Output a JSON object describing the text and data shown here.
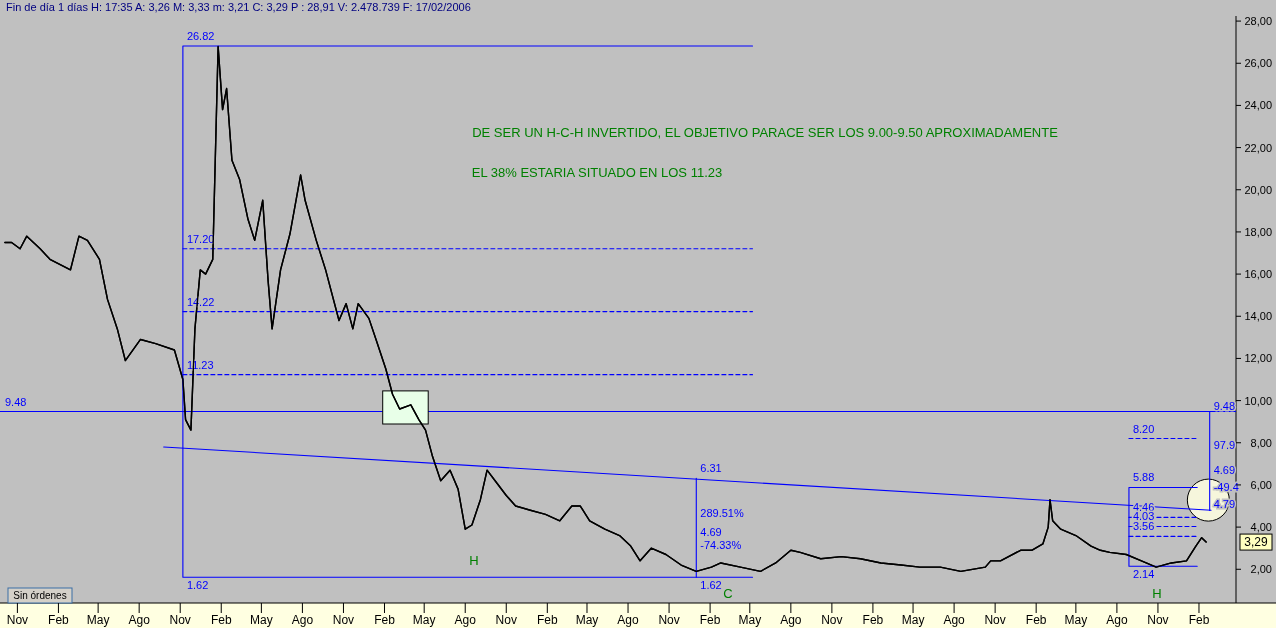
{
  "chart_data": {
    "type": "line",
    "title": "Fin de día 1 días H: 17:35 A: 3,26 M: 3,33 m: 3,21 C: 3,29 P : 28,91 V: 2.478.739 F: 17/02/2006",
    "xlim": [
      "1998-09-23",
      "2006-04-25"
    ],
    "ylim": [
      0.4,
      29.0
    ],
    "xticks": [
      {
        "value": "1998-11-01",
        "label": "Nov"
      },
      {
        "value": "1999-02-01",
        "label": "Feb"
      },
      {
        "value": "1999-05-01",
        "label": "May"
      },
      {
        "value": "1999-08-01",
        "label": "Ago"
      },
      {
        "value": "1999-11-01",
        "label": "Nov"
      },
      {
        "value": "2000-02-01",
        "label": "Feb"
      },
      {
        "value": "2000-05-01",
        "label": "May"
      },
      {
        "value": "2000-08-01",
        "label": "Ago"
      },
      {
        "value": "2000-11-01",
        "label": "Nov"
      },
      {
        "value": "2001-02-01",
        "label": "Feb"
      },
      {
        "value": "2001-05-01",
        "label": "May"
      },
      {
        "value": "2001-08-01",
        "label": "Ago"
      },
      {
        "value": "2001-11-01",
        "label": "Nov"
      },
      {
        "value": "2002-02-01",
        "label": "Feb"
      },
      {
        "value": "2002-05-01",
        "label": "May"
      },
      {
        "value": "2002-08-01",
        "label": "Ago"
      },
      {
        "value": "2002-11-01",
        "label": "Nov"
      },
      {
        "value": "2003-02-01",
        "label": "Feb"
      },
      {
        "value": "2003-05-01",
        "label": "May"
      },
      {
        "value": "2003-08-01",
        "label": "Ago"
      },
      {
        "value": "2003-11-01",
        "label": "Nov"
      },
      {
        "value": "2004-02-01",
        "label": "Feb"
      },
      {
        "value": "2004-05-01",
        "label": "May"
      },
      {
        "value": "2004-08-01",
        "label": "Ago"
      },
      {
        "value": "2004-11-01",
        "label": "Nov"
      },
      {
        "value": "2005-02-01",
        "label": "Feb"
      },
      {
        "value": "2005-05-01",
        "label": "May"
      },
      {
        "value": "2005-08-01",
        "label": "Ago"
      },
      {
        "value": "2005-11-01",
        "label": "Nov"
      },
      {
        "value": "2006-02-01",
        "label": "Feb"
      }
    ],
    "yticks": [
      {
        "value": 2,
        "label": "2,00"
      },
      {
        "value": 4,
        "label": "4,00"
      },
      {
        "value": 6,
        "label": "6,00"
      },
      {
        "value": 8,
        "label": "8,00"
      },
      {
        "value": 10,
        "label": "10,00"
      },
      {
        "value": 12,
        "label": "12,00"
      },
      {
        "value": 14,
        "label": "14,00"
      },
      {
        "value": 16,
        "label": "16,00"
      },
      {
        "value": 18,
        "label": "18,00"
      },
      {
        "value": 20,
        "label": "20,00"
      },
      {
        "value": 22,
        "label": "22,00"
      },
      {
        "value": 24,
        "label": "24,00"
      },
      {
        "value": 26,
        "label": "26,00"
      },
      {
        "value": 28,
        "label": "28,00"
      }
    ],
    "series": [
      {
        "color": "#000000",
        "x": [
          "1998-10-04",
          "1998-10-19",
          "1998-11-07",
          "1998-11-22",
          "1998-12-22",
          "1999-01-13",
          "1999-02-28",
          "1999-03-19",
          "1999-04-07",
          "1999-05-04",
          "1999-05-22",
          "1999-06-13",
          "1999-07-01",
          "1999-08-04",
          "1999-09-07",
          "1999-10-19",
          "1999-11-07",
          "1999-11-13",
          "1999-11-25",
          "1999-12-04",
          "1999-12-16",
          "1999-12-28",
          "2000-01-13",
          "2000-01-25",
          "2000-02-04",
          "2000-02-13",
          "2000-02-25",
          "2000-03-13",
          "2000-04-01",
          "2000-04-16",
          "2000-05-04",
          "2000-05-16",
          "2000-05-25",
          "2000-06-13",
          "2000-07-04",
          "2000-07-28",
          "2000-08-07",
          "2000-09-01",
          "2000-09-22",
          "2000-10-22",
          "2000-11-07",
          "2000-11-22",
          "2000-12-04",
          "2000-12-28",
          "2001-01-13",
          "2001-02-04",
          "2001-02-19",
          "2001-03-07",
          "2001-04-01",
          "2001-04-19",
          "2001-05-04",
          "2001-05-19",
          "2001-06-07",
          "2001-06-28",
          "2001-07-16",
          "2001-08-01",
          "2001-08-16",
          "2001-09-04",
          "2001-09-19",
          "2001-10-07",
          "2001-11-01",
          "2001-11-22",
          "2001-12-25",
          "2002-01-28",
          "2002-03-01",
          "2002-03-28",
          "2002-04-16",
          "2002-05-07",
          "2002-06-10",
          "2002-07-13",
          "2002-08-07",
          "2002-08-28",
          "2002-09-22",
          "2002-10-25",
          "2002-11-28",
          "2003-01-01",
          "2003-02-04",
          "2003-02-25",
          "2003-04-10",
          "2003-05-25",
          "2003-06-28",
          "2003-08-01",
          "2003-08-22",
          "2003-10-07",
          "2003-11-22",
          "2004-01-04",
          "2004-02-19",
          "2004-04-04",
          "2004-05-16",
          "2004-07-01",
          "2004-08-16",
          "2004-10-10",
          "2004-10-22",
          "2004-11-13",
          "2004-12-28",
          "2005-01-22",
          "2005-02-16",
          "2005-02-28",
          "2005-03-04",
          "2005-03-10",
          "2005-03-28",
          "2005-05-01",
          "2005-06-04",
          "2005-06-25",
          "2005-07-16",
          "2005-08-22",
          "2005-09-25",
          "2005-10-28",
          "2005-12-01",
          "2006-01-04",
          "2006-01-25",
          "2006-02-07",
          "2006-02-17"
        ],
        "values": [
          17.5,
          17.5,
          17.2,
          17.8,
          17.2,
          16.7,
          16.2,
          17.8,
          17.6,
          16.7,
          14.8,
          13.4,
          11.9,
          12.9,
          12.7,
          12.4,
          11.0,
          9.1,
          8.6,
          13.4,
          16.2,
          16.0,
          16.7,
          26.8,
          23.8,
          24.8,
          21.4,
          20.5,
          18.6,
          17.6,
          19.5,
          15.7,
          13.4,
          16.2,
          17.9,
          20.7,
          19.5,
          17.6,
          16.2,
          13.8,
          14.6,
          13.4,
          14.6,
          13.9,
          12.9,
          11.5,
          10.3,
          9.6,
          9.8,
          9.1,
          8.6,
          7.4,
          6.2,
          6.7,
          5.8,
          3.9,
          4.1,
          5.3,
          6.7,
          6.2,
          5.5,
          5.0,
          4.8,
          4.6,
          4.3,
          5.0,
          5.0,
          4.3,
          3.9,
          3.6,
          3.1,
          2.4,
          3.0,
          2.7,
          2.2,
          1.9,
          2.1,
          2.3,
          2.1,
          1.9,
          2.3,
          2.9,
          2.8,
          2.5,
          2.6,
          2.5,
          2.3,
          2.2,
          2.1,
          2.1,
          1.9,
          2.1,
          2.4,
          2.4,
          2.9,
          2.9,
          3.2,
          4.0,
          5.3,
          4.3,
          3.9,
          3.6,
          3.1,
          2.9,
          2.8,
          2.7,
          2.4,
          2.1,
          2.3,
          2.4,
          3.1,
          3.5,
          3.29
        ]
      },
      {
        "color": "#0000ff",
        "x": [
          "2003-05-07",
          "1999-11-07",
          "1999-11-07",
          "2003-05-07"
        ],
        "values": [
          26.82,
          26.82,
          1.62,
          1.62
        ]
      },
      {
        "color": "#0000ff",
        "line_style": "dashed",
        "x": [
          "1999-11-07",
          "2003-05-07"
        ],
        "values": [
          17.2,
          17.2
        ]
      },
      {
        "color": "#0000ff",
        "line_style": "dashed",
        "x": [
          "1999-11-07",
          "2003-05-07"
        ],
        "values": [
          14.22,
          14.22
        ]
      },
      {
        "color": "#0000ff",
        "line_style": "dashed",
        "x": [
          "1999-11-07",
          "2003-05-07"
        ],
        "values": [
          11.23,
          11.23
        ]
      },
      {
        "color": "#0000ff",
        "x": [
          "1999-09-25",
          "2006-02-28"
        ],
        "values": [
          7.8,
          4.8
        ]
      },
      {
        "color": "#0000ff",
        "x": [
          "2003-01-01",
          "2003-01-01"
        ],
        "values": [
          1.62,
          6.31
        ]
      },
      {
        "color": "#0000ff",
        "x": [
          "2006-01-28",
          "2005-08-28",
          "2005-08-28",
          "2006-01-28"
        ],
        "values": [
          5.88,
          5.88,
          2.14,
          2.14
        ]
      },
      {
        "color": "#0000ff",
        "line_style": "dashed",
        "x": [
          "2005-08-28",
          "2006-01-28"
        ],
        "values": [
          8.2,
          8.2
        ]
      },
      {
        "color": "#0000ff",
        "line_style": "dashed",
        "x": [
          "2005-08-28",
          "2006-01-28"
        ],
        "values": [
          4.46,
          4.46
        ]
      },
      {
        "color": "#0000ff",
        "line_style": "dashed",
        "x": [
          "2005-08-28",
          "2006-01-28"
        ],
        "values": [
          4.03,
          4.03
        ]
      },
      {
        "color": "#0000ff",
        "line_style": "dashed",
        "x": [
          "2005-08-28",
          "2006-01-28"
        ],
        "values": [
          3.56,
          3.56
        ]
      },
      {
        "color": "#0000ff",
        "x": [
          "2006-02-25",
          "2006-02-25"
        ],
        "values": [
          4.79,
          9.48
        ]
      }
    ],
    "ref_lines": [
      {
        "axis": "y",
        "value": 9.48,
        "label": "9.48",
        "color": "#0000ff"
      }
    ],
    "annotations": [
      "DE SER UN H-C-H INVERTIDO, EL OBJETIVO PARACE SER LOS 9.00-9.50 APROXIMADAMENTE",
      "EL 38% ESTARIA SITUADO EN LOS 11.23",
      "H",
      "C",
      "H",
      "Sin órdenes",
      "3,29",
      {
        "text": "26.82",
        "x": "1999-11-07",
        "y": 26.82
      },
      {
        "text": "17.20",
        "x": "1999-11-07",
        "y": 17.2
      },
      {
        "text": "14.22",
        "x": "1999-11-07",
        "y": 14.22
      },
      {
        "text": "11.23",
        "x": "1999-11-07",
        "y": 11.23
      },
      {
        "text": "1.62",
        "x": "1999-11-07",
        "y": 1.62
      },
      {
        "text": "6.31",
        "x": "2003-01-01",
        "y": 6.31
      },
      {
        "text": "289.51%",
        "x": "2003-01-01",
        "y": 4.2
      },
      {
        "text": "4.69",
        "x": "2003-01-01",
        "y": 3.3
      },
      {
        "text": "-74.33%",
        "x": "2003-01-01",
        "y": 2.7
      },
      {
        "text": "1.62",
        "x": "2003-01-01",
        "y": 1.62
      },
      {
        "text": "8.20",
        "x": "2005-08-28",
        "y": 8.2
      },
      {
        "text": "5.88",
        "x": "2005-08-28",
        "y": 5.88
      },
      {
        "text": "4.46",
        "x": "2005-08-28",
        "y": 4.46
      },
      {
        "text": "4.03",
        "x": "2005-08-28",
        "y": 4.03
      },
      {
        "text": "3.56",
        "x": "2005-08-28",
        "y": 3.56
      },
      {
        "text": "2.14",
        "x": "2005-08-28",
        "y": 2.14
      },
      {
        "text": "9.48",
        "x": "2006-02-25",
        "y": 9.48
      },
      {
        "text": "97.9",
        "x": "2006-02-25",
        "y": 7.6
      },
      {
        "text": "4.69",
        "x": "2006-02-25",
        "y": 6.4
      },
      {
        "text": "-49.4",
        "x": "2006-02-25",
        "y": 5.6
      },
      {
        "text": "4.79",
        "x": "2006-02-25",
        "y": 4.79
      }
    ]
  }
}
